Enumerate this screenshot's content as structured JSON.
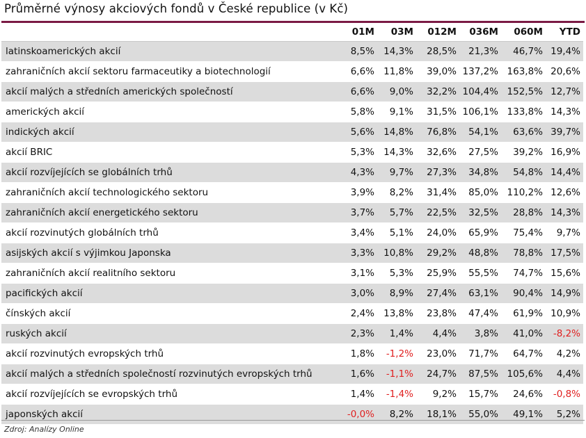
{
  "title": "Průměrné výnosy akciových fondů v České republice (v Kč)",
  "columns": [
    "",
    "01M",
    "03M",
    "012M",
    "036M",
    "060M",
    "YTD"
  ],
  "rows": [
    {
      "name": "latinskoamerických akcií",
      "values": [
        "8,5%",
        "14,3%",
        "28,5%",
        "21,3%",
        "46,7%",
        "19,4%"
      ]
    },
    {
      "name": "zahraničních akcií sektoru farmaceutiky a biotechnologií",
      "values": [
        "6,6%",
        "11,8%",
        "39,0%",
        "137,2%",
        "163,8%",
        "20,6%"
      ]
    },
    {
      "name": "akcií malých a středních amerických společností",
      "values": [
        "6,6%",
        "9,0%",
        "32,2%",
        "104,4%",
        "152,5%",
        "12,7%"
      ]
    },
    {
      "name": "amerických akcií",
      "values": [
        "5,8%",
        "9,1%",
        "31,5%",
        "106,1%",
        "133,8%",
        "14,3%"
      ]
    },
    {
      "name": "indických akcií",
      "values": [
        "5,6%",
        "14,8%",
        "76,8%",
        "54,1%",
        "63,6%",
        "39,7%"
      ]
    },
    {
      "name": "akcií BRIC",
      "values": [
        "5,3%",
        "14,3%",
        "32,6%",
        "27,5%",
        "39,2%",
        "16,9%"
      ]
    },
    {
      "name": "akcií rozvíjejících se globálních trhů",
      "values": [
        "4,3%",
        "9,7%",
        "27,3%",
        "34,8%",
        "54,8%",
        "14,4%"
      ]
    },
    {
      "name": "zahraničních akcií technologického sektoru",
      "values": [
        "3,9%",
        "8,2%",
        "31,4%",
        "85,0%",
        "110,2%",
        "12,6%"
      ]
    },
    {
      "name": "zahraničních akcií energetického sektoru",
      "values": [
        "3,7%",
        "5,7%",
        "22,5%",
        "32,5%",
        "28,8%",
        "14,3%"
      ]
    },
    {
      "name": "akcií rozvinutých globálních trhů",
      "values": [
        "3,4%",
        "5,1%",
        "24,0%",
        "65,9%",
        "75,4%",
        "9,7%"
      ]
    },
    {
      "name": "asijských akcií s výjimkou Japonska",
      "values": [
        "3,3%",
        "10,8%",
        "29,2%",
        "48,8%",
        "78,8%",
        "17,5%"
      ]
    },
    {
      "name": "zahraničních akcií realitního sektoru",
      "values": [
        "3,1%",
        "5,3%",
        "25,9%",
        "55,5%",
        "74,7%",
        "15,6%"
      ]
    },
    {
      "name": "pacifických akcií",
      "values": [
        "3,0%",
        "8,9%",
        "27,4%",
        "63,1%",
        "90,4%",
        "14,9%"
      ]
    },
    {
      "name": "čínských akcií",
      "values": [
        "2,4%",
        "13,8%",
        "23,8%",
        "47,4%",
        "61,9%",
        "10,9%"
      ]
    },
    {
      "name": "ruských akcií",
      "values": [
        "2,3%",
        "1,4%",
        "4,4%",
        "3,8%",
        "41,0%",
        "-8,2%"
      ]
    },
    {
      "name": "akcií rozvinutých evropských trhů",
      "values": [
        "1,8%",
        "-1,2%",
        "23,0%",
        "71,7%",
        "64,7%",
        "4,2%"
      ]
    },
    {
      "name": "akcií malých a středních společností rozvinutých evropských trhů",
      "values": [
        "1,6%",
        "-1,1%",
        "24,7%",
        "87,5%",
        "105,6%",
        "4,4%"
      ]
    },
    {
      "name": "akcií rozvíjejících se evropských trhů",
      "values": [
        "1,4%",
        "-1,4%",
        "9,2%",
        "15,7%",
        "24,6%",
        "-0,8%"
      ]
    },
    {
      "name": "japonských akcií",
      "values": [
        "-0,0%",
        "8,2%",
        "18,1%",
        "55,0%",
        "49,1%",
        "5,2%"
      ]
    }
  ],
  "source": "Zdroj: Analízy Online",
  "colors": {
    "accent_rule": "#7a1a44",
    "row_shade": "#dcdcdc",
    "negative": "#e02020"
  }
}
